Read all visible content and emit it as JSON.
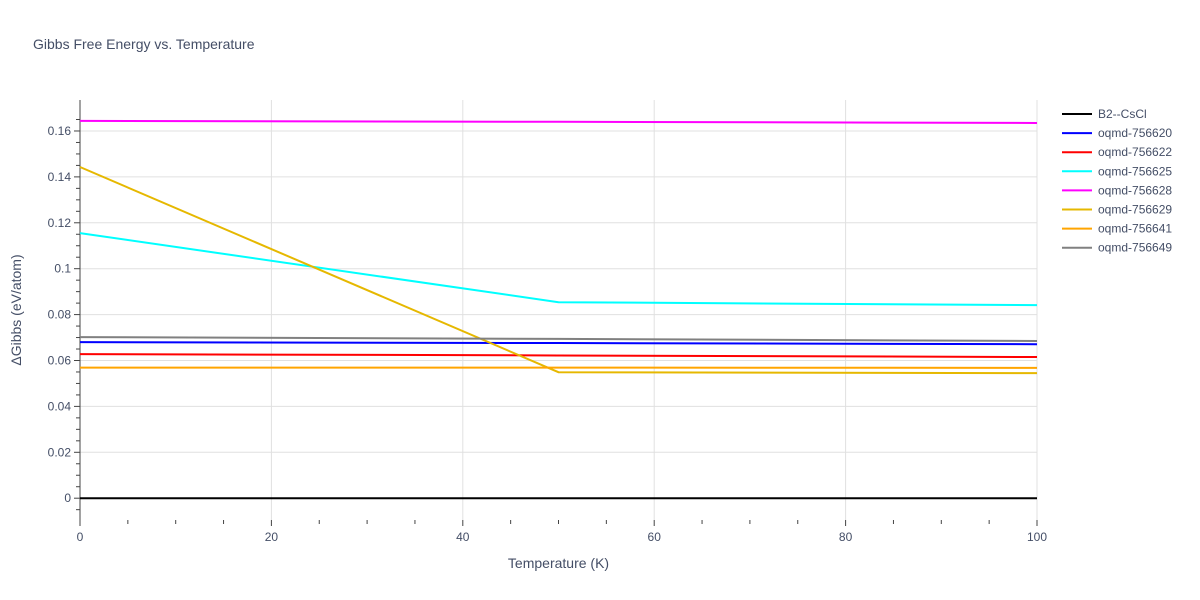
{
  "chart_data": {
    "type": "line",
    "title": "Gibbs Free Energy vs. Temperature",
    "xlabel": "Temperature (K)",
    "ylabel": "ΔGibbs (eV/atom)",
    "xlim": [
      0,
      100
    ],
    "ylim": [
      -0.0095,
      0.1735
    ],
    "xticks": [
      0,
      20,
      40,
      60,
      80,
      100
    ],
    "yticks": [
      0,
      0.02,
      0.04,
      0.06,
      0.08,
      0.1,
      0.12,
      0.14,
      0.16
    ],
    "ytick_labels": [
      "0",
      "0.02",
      "0.04",
      "0.06",
      "0.08",
      "0.1",
      "0.12",
      "0.14",
      "0.16"
    ],
    "grid": true,
    "legend_position": "right",
    "series": [
      {
        "name": "B2--CsCl",
        "color": "#000000",
        "x": [
          0,
          100
        ],
        "y": [
          0,
          0
        ]
      },
      {
        "name": "oqmd-756620",
        "color": "#0000ff",
        "x": [
          0,
          50,
          100
        ],
        "y": [
          0.068,
          0.0676,
          0.0671
        ]
      },
      {
        "name": "oqmd-756622",
        "color": "#ff0000",
        "x": [
          0,
          50,
          100
        ],
        "y": [
          0.0628,
          0.0622,
          0.0615
        ]
      },
      {
        "name": "oqmd-756625",
        "color": "#00ffff",
        "x": [
          0,
          50,
          100
        ],
        "y": [
          0.1155,
          0.0854,
          0.0841
        ]
      },
      {
        "name": "oqmd-756628",
        "color": "#ff00ff",
        "x": [
          0,
          50,
          100
        ],
        "y": [
          0.1644,
          0.164,
          0.1635
        ]
      },
      {
        "name": "oqmd-756629",
        "color": "#e6b800",
        "x": [
          0,
          50,
          100
        ],
        "y": [
          0.1443,
          0.0549,
          0.0545
        ]
      },
      {
        "name": "oqmd-756641",
        "color": "#ffa500",
        "x": [
          0,
          50,
          100
        ],
        "y": [
          0.0569,
          0.0569,
          0.0568
        ]
      },
      {
        "name": "oqmd-756649",
        "color": "#808080",
        "x": [
          0,
          50,
          100
        ],
        "y": [
          0.0702,
          0.0694,
          0.0685
        ]
      }
    ]
  }
}
